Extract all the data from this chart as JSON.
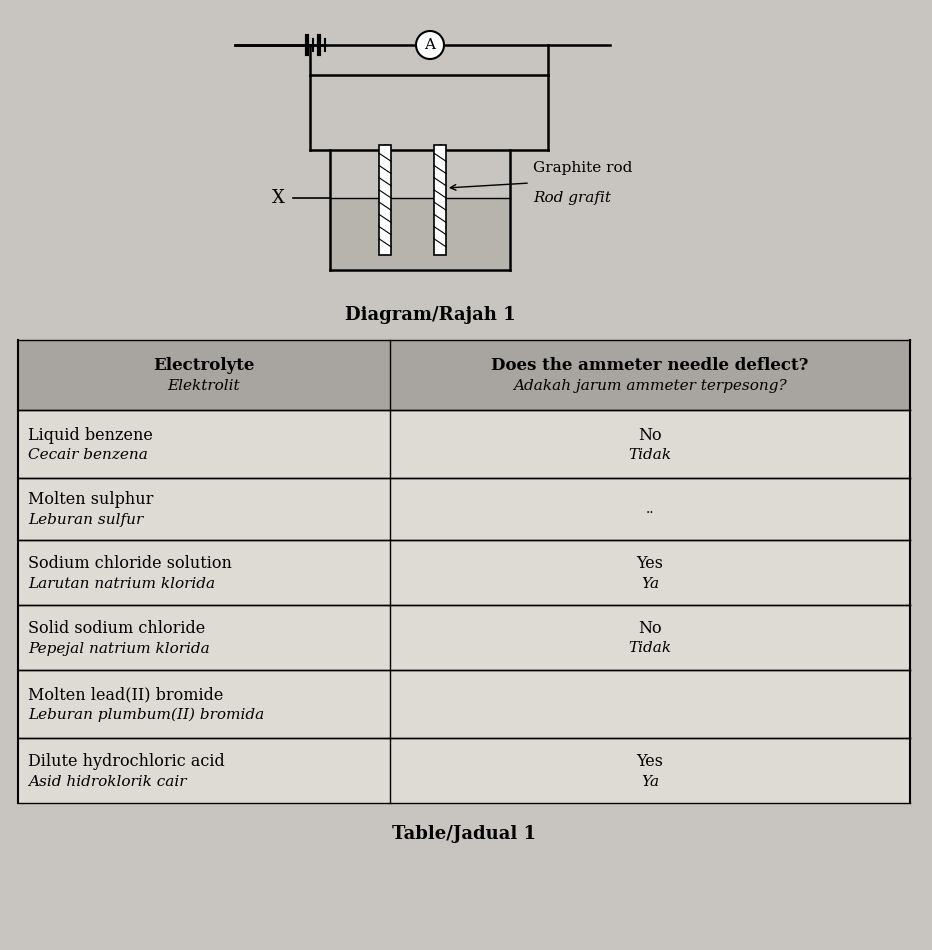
{
  "bg_color": "#c8c5c0",
  "title_diagram": "Diagram/Rajah 1",
  "title_table": "Table/Jadual 1",
  "table_header_col1": "Electrolyte\nElektrolit",
  "table_header_col2": "Does the ammeter needle deflect?\nAdakah jarum ammeter terpesong?",
  "table_rows": [
    [
      "Liquid benzene\nCecair benzena",
      "No\nTidak"
    ],
    [
      "Molten sulphur\nLeburan sulfur",
      ".."
    ],
    [
      "Sodium chloride solution\nLarutan natrium klorida",
      "Yes\nYa"
    ],
    [
      "Solid sodium chloride\nPepejal natrium klorida",
      "No\nTidak"
    ],
    [
      "Molten lead(II) bromide\nLeburan plumbum(II) bromida",
      ""
    ],
    [
      "Dilute hydrochloric acid\nAsid hidroklorik cair",
      "Yes\nYa"
    ]
  ],
  "header_bg": "#a8a5a0",
  "row_bg_light": "#dedad4",
  "graphite_label_line1": "Graphite rod",
  "graphite_label_line2": "Rod grafit",
  "x_label": "X"
}
